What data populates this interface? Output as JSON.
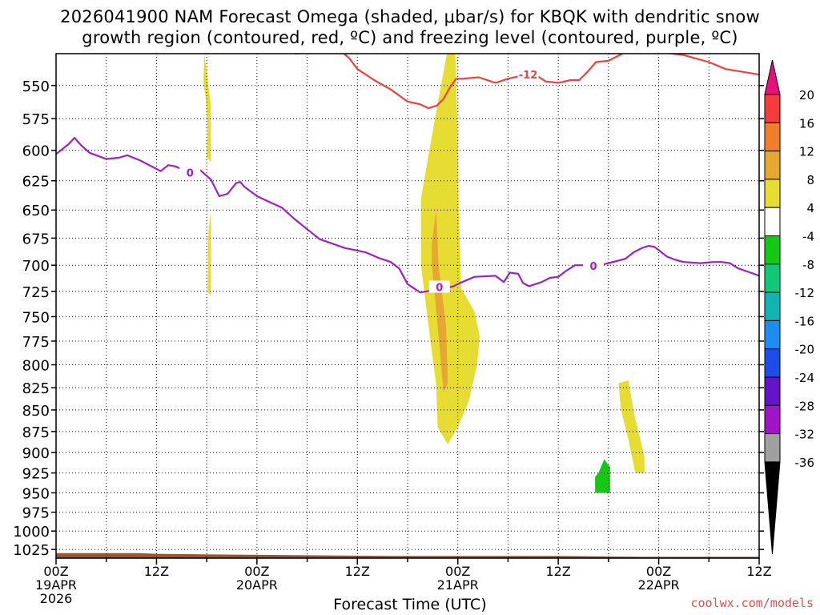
{
  "title_line1": "2026041900 NAM Forecast Omega (shaded, μbar/s) for KBQK with dendritic snow",
  "title_line2": "growth region (contoured, red, ºC) and freezing level (contoured, purple, ºC)",
  "xlabel": "Forecast Time (UTC)",
  "credit": "coolwx.com/models",
  "chart_data": {
    "type": "heatmap",
    "ylabel": "",
    "y_axis": {
      "scale": "pressure (inverted)",
      "ticks": [
        550,
        575,
        600,
        625,
        650,
        675,
        700,
        725,
        750,
        775,
        800,
        825,
        850,
        875,
        900,
        925,
        950,
        975,
        1000,
        1025
      ],
      "range": [
        527,
        1037
      ]
    },
    "x_axis": {
      "range_hours": [
        0,
        84
      ],
      "ticks": [
        {
          "hour": 0,
          "lines": [
            "00Z",
            "19APR",
            "2026"
          ]
        },
        {
          "hour": 12,
          "lines": [
            "12Z"
          ]
        },
        {
          "hour": 24,
          "lines": [
            "00Z",
            "20APR"
          ]
        },
        {
          "hour": 36,
          "lines": [
            "12Z"
          ]
        },
        {
          "hour": 48,
          "lines": [
            "00Z",
            "21APR"
          ]
        },
        {
          "hour": 60,
          "lines": [
            "12Z"
          ]
        },
        {
          "hour": 72,
          "lines": [
            "00Z",
            "22APR"
          ]
        },
        {
          "hour": 84,
          "lines": [
            "12Z"
          ]
        }
      ]
    },
    "grid": true,
    "colorbar": {
      "labels": [
        "20",
        "16",
        "12",
        "8",
        "4",
        "-4",
        "-8",
        "-12",
        "-16",
        "-20",
        "-24",
        "-28",
        "-32",
        "-36"
      ],
      "colors": [
        "#e8107a",
        "#f53c3c",
        "#f07e2a",
        "#e6a832",
        "#e6dc32",
        "#ffffff",
        "#14c814",
        "#10c878",
        "#10b4b4",
        "#1e8cf0",
        "#1e4ce6",
        "#6414c8",
        "#a014c8",
        "#a0a0a0",
        "#000000"
      ]
    },
    "shaded_regions": [
      {
        "name": "omega 4-8",
        "color": "#e6dc32",
        "points": [
          [
            17.7,
            527
          ],
          [
            18.0,
            540
          ],
          [
            18.5,
            565
          ],
          [
            18.5,
            610
          ],
          [
            18.0,
            605
          ],
          [
            18.1,
            580
          ],
          [
            17.9,
            560
          ],
          [
            17.6,
            548
          ]
        ]
      },
      {
        "name": "omega 4-8",
        "color": "#e6dc32",
        "points": [
          [
            18.5,
            650
          ],
          [
            18.5,
            730
          ],
          [
            18.1,
            725
          ],
          [
            18.2,
            670
          ]
        ]
      },
      {
        "name": "omega 4-8",
        "color": "#e6dc32",
        "points": [
          [
            46.7,
            527
          ],
          [
            47.7,
            527
          ],
          [
            48.0,
            590
          ],
          [
            48.1,
            650
          ],
          [
            48.4,
            722
          ],
          [
            50.0,
            745
          ],
          [
            50.6,
            770
          ],
          [
            50.3,
            800
          ],
          [
            49.3,
            840
          ],
          [
            48.0,
            870
          ],
          [
            46.8,
            890
          ],
          [
            45.6,
            870
          ],
          [
            45.4,
            820
          ],
          [
            44.8,
            780
          ],
          [
            43.6,
            700
          ],
          [
            43.6,
            640
          ],
          [
            44.6,
            600
          ],
          [
            45.7,
            560
          ]
        ]
      },
      {
        "name": "omega 8-12",
        "color": "#e6a832",
        "points": [
          [
            45.4,
            650
          ],
          [
            45.7,
            700
          ],
          [
            46.6,
            760
          ],
          [
            46.8,
            820
          ],
          [
            46.3,
            830
          ],
          [
            45.6,
            760
          ],
          [
            44.9,
            700
          ],
          [
            44.9,
            680
          ]
        ]
      },
      {
        "name": "omega 4-8",
        "color": "#e6dc32",
        "points": [
          [
            67.2,
            820
          ],
          [
            68.4,
            817
          ],
          [
            68.8,
            840
          ],
          [
            69.2,
            860
          ],
          [
            69.7,
            880
          ],
          [
            70.3,
            905
          ],
          [
            70.3,
            925
          ],
          [
            69.2,
            925
          ],
          [
            68.4,
            885
          ],
          [
            67.5,
            850
          ]
        ]
      },
      {
        "name": "omega -4 to -8",
        "color": "#14c814",
        "points": [
          [
            64.8,
            925
          ],
          [
            65.5,
            908
          ],
          [
            66.2,
            918
          ],
          [
            66.2,
            950
          ],
          [
            64.4,
            950
          ],
          [
            64.4,
            930
          ]
        ]
      },
      {
        "name": "terrain",
        "color": "#a0522d",
        "points": [
          [
            0,
            1030
          ],
          [
            10,
            1030
          ],
          [
            12,
            1031
          ],
          [
            20,
            1032
          ],
          [
            30,
            1033
          ],
          [
            40,
            1034
          ],
          [
            50,
            1034
          ],
          [
            60,
            1034
          ],
          [
            70,
            1035
          ],
          [
            84,
            1035
          ],
          [
            84,
            1040
          ],
          [
            0,
            1040
          ]
        ]
      }
    ],
    "contours": [
      {
        "name": "dendritic snow growth (-12 ºC)",
        "color": "#f04040",
        "label": "-12",
        "points": [
          [
            28.5,
            527
          ],
          [
            34,
            525
          ],
          [
            35,
            530
          ],
          [
            36,
            538
          ],
          [
            38,
            546
          ],
          [
            40,
            553
          ],
          [
            42,
            562
          ],
          [
            43.5,
            564
          ],
          [
            44.5,
            567
          ],
          [
            45.5,
            565
          ],
          [
            46.3,
            560
          ],
          [
            47,
            552
          ],
          [
            47.8,
            545
          ],
          [
            48.5,
            545
          ],
          [
            50.5,
            544
          ],
          [
            52.5,
            548
          ],
          [
            54,
            545
          ],
          [
            55.5,
            543
          ],
          [
            57,
            541
          ],
          [
            58.5,
            547
          ],
          [
            60,
            548
          ],
          [
            61.5,
            546
          ],
          [
            62.5,
            546
          ],
          [
            63.5,
            540
          ],
          [
            64.5,
            533
          ],
          [
            66,
            532
          ],
          [
            68,
            526
          ],
          [
            71,
            525
          ],
          [
            75,
            528
          ],
          [
            78,
            533
          ],
          [
            80,
            538
          ],
          [
            84,
            542
          ]
        ]
      },
      {
        "name": "freezing level (0 ºC)",
        "color": "#a020c8",
        "label": "0",
        "points": [
          [
            0,
            603
          ],
          [
            1.5,
            595
          ],
          [
            2.2,
            590
          ],
          [
            3,
            596
          ],
          [
            4,
            602
          ],
          [
            6,
            607
          ],
          [
            7.5,
            606
          ],
          [
            8.5,
            604
          ],
          [
            10,
            608
          ],
          [
            12.5,
            617
          ],
          [
            13.4,
            612
          ],
          [
            14.2,
            613
          ],
          [
            16,
            618
          ],
          [
            17.2,
            616
          ],
          [
            18.5,
            624
          ],
          [
            19.5,
            638
          ],
          [
            20.5,
            636
          ],
          [
            21.5,
            627
          ],
          [
            22,
            626
          ],
          [
            22.5,
            630
          ],
          [
            24,
            638
          ],
          [
            25.5,
            643
          ],
          [
            27,
            648
          ],
          [
            28.5,
            658
          ],
          [
            30,
            667
          ],
          [
            31.5,
            676
          ],
          [
            34.5,
            684
          ],
          [
            37,
            688
          ],
          [
            38.5,
            693
          ],
          [
            40,
            697
          ],
          [
            41,
            703
          ],
          [
            42,
            718
          ],
          [
            43.5,
            726
          ],
          [
            45,
            724
          ],
          [
            46,
            720
          ],
          [
            46.5,
            722
          ],
          [
            47.5,
            720
          ],
          [
            48.5,
            716
          ],
          [
            50,
            711
          ],
          [
            52.5,
            710
          ],
          [
            53.5,
            716
          ],
          [
            54.2,
            707
          ],
          [
            55.2,
            708
          ],
          [
            55.8,
            717
          ],
          [
            56.5,
            720
          ],
          [
            58,
            716
          ],
          [
            59,
            712
          ],
          [
            60,
            711
          ],
          [
            61,
            705
          ],
          [
            62,
            700
          ],
          [
            63.5,
            700
          ],
          [
            64.5,
            701
          ],
          [
            66,
            698
          ],
          [
            68,
            694
          ],
          [
            69,
            688
          ],
          [
            70,
            684
          ],
          [
            70.8,
            682
          ],
          [
            71.5,
            683
          ],
          [
            72,
            686
          ],
          [
            73,
            692
          ],
          [
            74,
            695
          ],
          [
            75,
            697
          ],
          [
            77,
            698
          ],
          [
            78.5,
            697
          ],
          [
            79.5,
            697
          ],
          [
            80.5,
            698
          ],
          [
            81.5,
            703
          ],
          [
            83,
            707
          ],
          [
            84,
            710
          ]
        ]
      }
    ]
  }
}
